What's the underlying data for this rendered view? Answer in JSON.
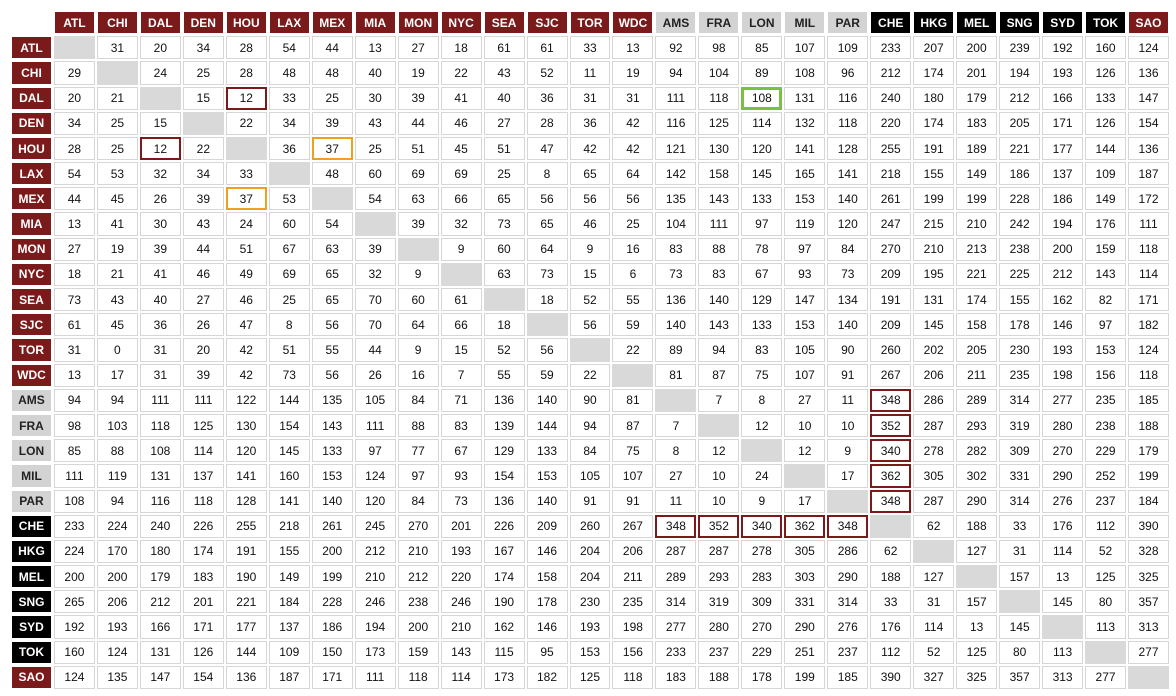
{
  "chart_data": {
    "type": "heatmap",
    "title": "",
    "cities": [
      "ATL",
      "CHI",
      "DAL",
      "DEN",
      "HOU",
      "LAX",
      "MEX",
      "MIA",
      "MON",
      "NYC",
      "SEA",
      "SJC",
      "TOR",
      "WDC",
      "AMS",
      "FRA",
      "LON",
      "MIL",
      "PAR",
      "CHE",
      "HKG",
      "MEL",
      "SNG",
      "SYD",
      "TOK",
      "SAO"
    ],
    "groups": [
      {
        "name": "americas",
        "header_bg": "#7b1a1a",
        "header_fg": "#ffffff",
        "cities": [
          "ATL",
          "CHI",
          "DAL",
          "DEN",
          "HOU",
          "LAX",
          "MEX",
          "MIA",
          "MON",
          "NYC",
          "SEA",
          "SJC",
          "TOR",
          "WDC"
        ]
      },
      {
        "name": "europe",
        "header_bg": "#d3d3d3",
        "header_fg": "#222222",
        "cities": [
          "AMS",
          "FRA",
          "LON",
          "MIL",
          "PAR"
        ]
      },
      {
        "name": "asia-pacific",
        "header_bg": "#000000",
        "header_fg": "#ffffff",
        "cities": [
          "CHE",
          "HKG",
          "MEL",
          "SNG",
          "SYD",
          "TOK"
        ]
      },
      {
        "name": "south-america",
        "header_bg": "#7b1a1a",
        "header_fg": "#ffffff",
        "cities": [
          "SAO"
        ]
      }
    ],
    "matrix": [
      [
        null,
        31,
        20,
        34,
        28,
        54,
        44,
        13,
        27,
        18,
        61,
        61,
        33,
        13,
        92,
        98,
        85,
        107,
        109,
        233,
        207,
        200,
        239,
        192,
        160,
        124
      ],
      [
        29,
        null,
        24,
        25,
        28,
        48,
        48,
        40,
        19,
        22,
        43,
        52,
        11,
        19,
        94,
        104,
        89,
        108,
        96,
        212,
        174,
        201,
        194,
        193,
        126,
        136
      ],
      [
        20,
        21,
        null,
        15,
        12,
        33,
        25,
        30,
        39,
        41,
        40,
        36,
        31,
        31,
        111,
        118,
        108,
        131,
        116,
        240,
        180,
        179,
        212,
        166,
        133,
        147
      ],
      [
        34,
        25,
        15,
        null,
        22,
        34,
        39,
        43,
        44,
        46,
        27,
        28,
        36,
        42,
        116,
        125,
        114,
        132,
        118,
        220,
        174,
        183,
        205,
        171,
        126,
        154
      ],
      [
        28,
        25,
        12,
        22,
        null,
        36,
        37,
        25,
        51,
        45,
        51,
        47,
        42,
        42,
        121,
        130,
        120,
        141,
        128,
        255,
        191,
        189,
        221,
        177,
        144,
        136
      ],
      [
        54,
        53,
        32,
        34,
        33,
        null,
        48,
        60,
        69,
        69,
        25,
        8,
        65,
        64,
        142,
        158,
        145,
        165,
        141,
        218,
        155,
        149,
        186,
        137,
        109,
        187
      ],
      [
        44,
        45,
        26,
        39,
        37,
        53,
        null,
        54,
        63,
        66,
        65,
        56,
        56,
        56,
        135,
        143,
        133,
        153,
        140,
        261,
        199,
        199,
        228,
        186,
        149,
        172
      ],
      [
        13,
        41,
        30,
        43,
        24,
        60,
        54,
        null,
        39,
        32,
        73,
        65,
        46,
        25,
        104,
        111,
        97,
        119,
        120,
        247,
        215,
        210,
        242,
        194,
        176,
        111
      ],
      [
        27,
        19,
        39,
        44,
        51,
        67,
        63,
        39,
        null,
        9,
        60,
        64,
        9,
        16,
        83,
        88,
        78,
        97,
        84,
        270,
        210,
        213,
        238,
        200,
        159,
        118
      ],
      [
        18,
        21,
        41,
        46,
        49,
        69,
        65,
        32,
        9,
        null,
        63,
        73,
        15,
        6,
        73,
        83,
        67,
        93,
        73,
        209,
        195,
        221,
        225,
        212,
        143,
        114
      ],
      [
        73,
        43,
        40,
        27,
        46,
        25,
        65,
        70,
        60,
        61,
        null,
        18,
        52,
        55,
        136,
        140,
        129,
        147,
        134,
        191,
        131,
        174,
        155,
        162,
        82,
        171
      ],
      [
        61,
        45,
        36,
        26,
        47,
        8,
        56,
        70,
        64,
        66,
        18,
        null,
        56,
        59,
        140,
        143,
        133,
        153,
        140,
        209,
        145,
        158,
        178,
        146,
        97,
        182
      ],
      [
        31,
        0,
        31,
        20,
        42,
        51,
        55,
        44,
        9,
        15,
        52,
        56,
        null,
        22,
        89,
        94,
        83,
        105,
        90,
        260,
        202,
        205,
        230,
        193,
        153,
        124
      ],
      [
        13,
        17,
        31,
        39,
        42,
        73,
        56,
        26,
        16,
        7,
        55,
        59,
        22,
        null,
        81,
        87,
        75,
        107,
        91,
        267,
        206,
        211,
        235,
        198,
        156,
        118
      ],
      [
        94,
        94,
        111,
        111,
        122,
        144,
        135,
        105,
        84,
        71,
        136,
        140,
        90,
        81,
        null,
        7,
        8,
        27,
        11,
        348,
        286,
        289,
        314,
        277,
        235,
        185
      ],
      [
        98,
        103,
        118,
        125,
        130,
        154,
        143,
        111,
        88,
        83,
        139,
        144,
        94,
        87,
        7,
        null,
        12,
        10,
        10,
        352,
        287,
        293,
        319,
        280,
        238,
        188
      ],
      [
        85,
        88,
        108,
        114,
        120,
        145,
        133,
        97,
        77,
        67,
        129,
        133,
        84,
        75,
        8,
        12,
        null,
        12,
        9,
        340,
        278,
        282,
        309,
        270,
        229,
        179
      ],
      [
        111,
        119,
        131,
        137,
        141,
        160,
        153,
        124,
        97,
        93,
        154,
        153,
        105,
        107,
        27,
        10,
        24,
        null,
        17,
        362,
        305,
        302,
        331,
        290,
        252,
        199
      ],
      [
        108,
        94,
        116,
        118,
        128,
        141,
        140,
        120,
        84,
        73,
        136,
        140,
        91,
        91,
        11,
        10,
        9,
        17,
        null,
        348,
        287,
        290,
        314,
        276,
        237,
        184
      ],
      [
        233,
        224,
        240,
        226,
        255,
        218,
        261,
        245,
        270,
        201,
        226,
        209,
        260,
        267,
        348,
        352,
        340,
        362,
        348,
        null,
        62,
        188,
        33,
        176,
        112,
        390
      ],
      [
        224,
        170,
        180,
        174,
        191,
        155,
        200,
        212,
        210,
        193,
        167,
        146,
        204,
        206,
        287,
        287,
        278,
        305,
        286,
        62,
        null,
        127,
        31,
        114,
        52,
        328
      ],
      [
        200,
        200,
        179,
        183,
        190,
        149,
        199,
        210,
        212,
        220,
        174,
        158,
        204,
        211,
        289,
        293,
        283,
        303,
        290,
        188,
        127,
        null,
        157,
        13,
        125,
        325
      ],
      [
        265,
        206,
        212,
        201,
        221,
        184,
        228,
        246,
        238,
        246,
        190,
        178,
        230,
        235,
        314,
        319,
        309,
        331,
        314,
        33,
        31,
        157,
        null,
        145,
        80,
        357
      ],
      [
        192,
        193,
        166,
        171,
        177,
        137,
        186,
        194,
        200,
        210,
        162,
        146,
        193,
        198,
        277,
        280,
        270,
        290,
        276,
        176,
        114,
        13,
        145,
        null,
        113,
        313
      ],
      [
        160,
        124,
        131,
        126,
        144,
        109,
        150,
        173,
        159,
        143,
        115,
        95,
        153,
        156,
        233,
        237,
        229,
        251,
        237,
        112,
        52,
        125,
        80,
        113,
        null,
        277
      ],
      [
        124,
        135,
        147,
        154,
        136,
        187,
        171,
        111,
        118,
        114,
        173,
        182,
        125,
        118,
        183,
        188,
        178,
        199,
        185,
        390,
        327,
        325,
        357,
        313,
        277,
        null
      ]
    ],
    "highlights": {
      "maroon": [
        [
          2,
          4
        ],
        [
          4,
          2
        ],
        [
          14,
          19
        ],
        [
          15,
          19
        ],
        [
          16,
          19
        ],
        [
          17,
          19
        ],
        [
          18,
          19
        ],
        [
          19,
          14
        ],
        [
          19,
          15
        ],
        [
          19,
          16
        ],
        [
          19,
          17
        ],
        [
          19,
          18
        ]
      ],
      "orange": [
        [
          4,
          6
        ],
        [
          6,
          4
        ]
      ],
      "green": [
        [
          2,
          16
        ]
      ]
    },
    "colors": {
      "maroon_outline": "#7a1a1a",
      "orange_outline": "#f0a020",
      "green_outline": "#7cc043",
      "diagonal_fill": "#d9d9d9"
    },
    "grid": true
  }
}
